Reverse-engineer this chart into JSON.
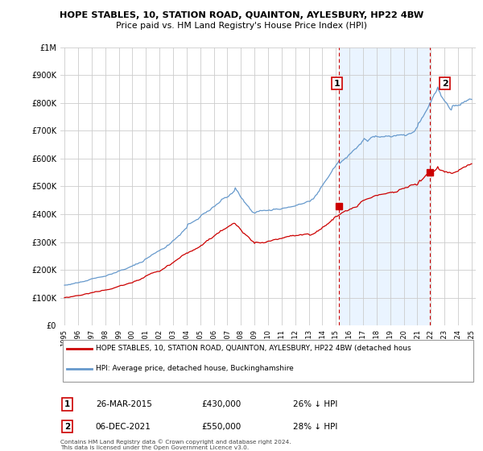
{
  "title": "HOPE STABLES, 10, STATION ROAD, QUAINTON, AYLESBURY, HP22 4BW",
  "subtitle": "Price paid vs. HM Land Registry's House Price Index (HPI)",
  "legend_label_red": "HOPE STABLES, 10, STATION ROAD, QUAINTON, AYLESBURY, HP22 4BW (detached hous",
  "legend_label_blue": "HPI: Average price, detached house, Buckinghamshire",
  "annotation1_date": "26-MAR-2015",
  "annotation1_price": "£430,000",
  "annotation1_hpi": "26% ↓ HPI",
  "annotation2_date": "06-DEC-2021",
  "annotation2_price": "£550,000",
  "annotation2_hpi": "28% ↓ HPI",
  "footer": "Contains HM Land Registry data © Crown copyright and database right 2024.\nThis data is licensed under the Open Government Licence v3.0.",
  "ylim": [
    0,
    1000000
  ],
  "yticks": [
    0,
    100000,
    200000,
    300000,
    400000,
    500000,
    600000,
    700000,
    800000,
    900000,
    1000000
  ],
  "color_red": "#cc0000",
  "color_blue": "#6699cc",
  "color_shade": "#ddeeff",
  "color_vline": "#cc0000",
  "sale1_x": 2015.23,
  "sale1_y": 430000,
  "sale2_x": 2021.93,
  "sale2_y": 550000,
  "xmin": 1994.7,
  "xmax": 2025.3
}
